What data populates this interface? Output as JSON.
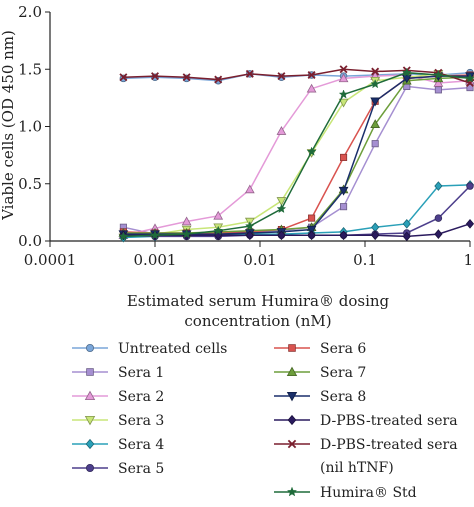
{
  "chart_data": {
    "type": "line",
    "title": "",
    "xlabel_line1": "Estimated serum Humira® dosing",
    "xlabel_line2": "concentration (nM)",
    "ylabel": "Viable cells (OD 450 nm)",
    "xscale": "log",
    "xlim": [
      0.0001,
      1
    ],
    "ylim": [
      0,
      2
    ],
    "x_ticks": [
      {
        "value": 0.0001,
        "label": "0.0001"
      },
      {
        "value": 0.001,
        "label": "0.001"
      },
      {
        "value": 0.01,
        "label": "0.01"
      },
      {
        "value": 0.1,
        "label": "0.1"
      },
      {
        "value": 1,
        "label": "1"
      }
    ],
    "y_ticks": [
      {
        "value": 0,
        "label": "0.0"
      },
      {
        "value": 0.5,
        "label": "0.5"
      },
      {
        "value": 1,
        "label": "1.0"
      },
      {
        "value": 1.5,
        "label": "1.5"
      },
      {
        "value": 2,
        "label": "2.0"
      }
    ],
    "grid": false,
    "legend_position": "bottom",
    "x": [
      0.0005,
      0.001,
      0.002,
      0.004,
      0.008,
      0.016,
      0.031,
      0.0625,
      0.125,
      0.25,
      0.5,
      1
    ],
    "series": [
      {
        "name": "Untreated cells",
        "color": "#7aa6d9",
        "marker": "circle",
        "values": [
          1.42,
          1.43,
          1.42,
          1.4,
          1.46,
          1.43,
          1.45,
          1.44,
          1.45,
          1.46,
          1.45,
          1.47
        ]
      },
      {
        "name": "Sera 1",
        "color": "#a58fd1",
        "marker": "square",
        "values": [
          0.12,
          0.06,
          0.06,
          0.06,
          0.07,
          0.09,
          0.12,
          0.3,
          0.85,
          1.35,
          1.32,
          1.34
        ]
      },
      {
        "name": "Sera 2",
        "color": "#e49ad8",
        "marker": "triangle",
        "values": [
          0.05,
          0.11,
          0.17,
          0.22,
          0.45,
          0.96,
          1.33,
          1.42,
          1.44,
          1.45,
          1.38,
          1.4
        ]
      },
      {
        "name": "Sera 3",
        "color": "#c8e678",
        "marker": "triangle-down",
        "values": [
          0.03,
          0.06,
          0.1,
          0.12,
          0.17,
          0.35,
          0.77,
          1.21,
          1.4,
          1.43,
          1.46,
          1.42
        ]
      },
      {
        "name": "Sera 4",
        "color": "#2aa0b8",
        "marker": "diamond",
        "values": [
          0.03,
          0.04,
          0.05,
          0.05,
          0.06,
          0.06,
          0.07,
          0.08,
          0.12,
          0.15,
          0.48,
          0.49
        ]
      },
      {
        "name": "Sera 5",
        "color": "#4d3f8c",
        "marker": "circle",
        "values": [
          0.05,
          0.04,
          0.04,
          0.04,
          0.05,
          0.05,
          0.05,
          0.05,
          0.06,
          0.07,
          0.2,
          0.48
        ]
      },
      {
        "name": "Sera 6",
        "color": "#d9534f",
        "marker": "square",
        "values": [
          0.08,
          0.07,
          0.07,
          0.07,
          0.08,
          0.1,
          0.2,
          0.73,
          1.22,
          1.42,
          1.44,
          1.45
        ]
      },
      {
        "name": "Sera 7",
        "color": "#6d9e3b",
        "marker": "triangle",
        "values": [
          0.07,
          0.07,
          0.07,
          0.08,
          0.09,
          0.1,
          0.12,
          0.45,
          1.02,
          1.4,
          1.42,
          1.43
        ]
      },
      {
        "name": "Sera 8",
        "color": "#1a2f6b",
        "marker": "triangle-down",
        "values": [
          0.06,
          0.06,
          0.06,
          0.06,
          0.07,
          0.08,
          0.1,
          0.44,
          1.22,
          1.42,
          1.44,
          1.44
        ]
      },
      {
        "name": "D-PBS-treated sera",
        "color": "#2a1a5e",
        "marker": "diamond",
        "values": [
          0.05,
          0.05,
          0.05,
          0.05,
          0.05,
          0.05,
          0.05,
          0.05,
          0.05,
          0.04,
          0.06,
          0.15
        ]
      },
      {
        "name_line1": "D-PBS-treated sera",
        "name_line2": "(nil hTNF)",
        "color": "#7a1f2e",
        "marker": "x",
        "values": [
          1.43,
          1.44,
          1.43,
          1.41,
          1.46,
          1.44,
          1.45,
          1.5,
          1.48,
          1.49,
          1.47,
          1.38
        ]
      },
      {
        "name": "Humira® Std",
        "color": "#1f6b3a",
        "marker": "star",
        "values": [
          0.04,
          0.05,
          0.06,
          0.09,
          0.13,
          0.28,
          0.78,
          1.28,
          1.37,
          1.47,
          1.45,
          1.42
        ]
      }
    ]
  }
}
